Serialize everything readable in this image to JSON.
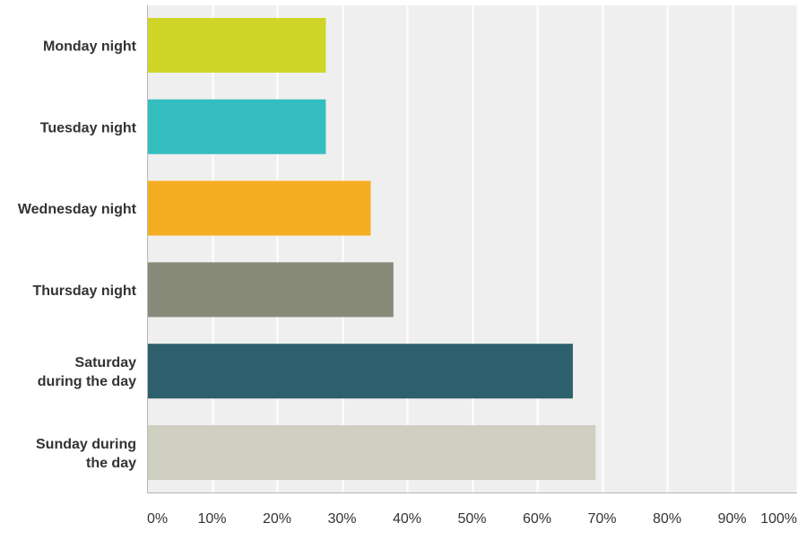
{
  "chart_data": {
    "type": "bar",
    "orientation": "horizontal",
    "categories": [
      [
        "Monday night"
      ],
      [
        "Tuesday night"
      ],
      [
        "Wednesday night"
      ],
      [
        "Thursday night"
      ],
      [
        "Saturday",
        "during the day"
      ],
      [
        "Sunday during",
        "the day"
      ]
    ],
    "values": [
      27.5,
      27.5,
      34.4,
      37.9,
      65.5,
      69.0
    ],
    "bar_colors": [
      "#cfd628",
      "#35bec0",
      "#f5ae22",
      "#878a79",
      "#2e5f6c",
      "#cfcfc2"
    ],
    "xlim": [
      0,
      100
    ],
    "x_ticks": [
      "0%",
      "10%",
      "20%",
      "30%",
      "40%",
      "50%",
      "60%",
      "70%",
      "80%",
      "90%",
      "100%"
    ],
    "grid": true,
    "plot_background": "#efefef",
    "title": "",
    "xlabel": "",
    "ylabel": ""
  }
}
